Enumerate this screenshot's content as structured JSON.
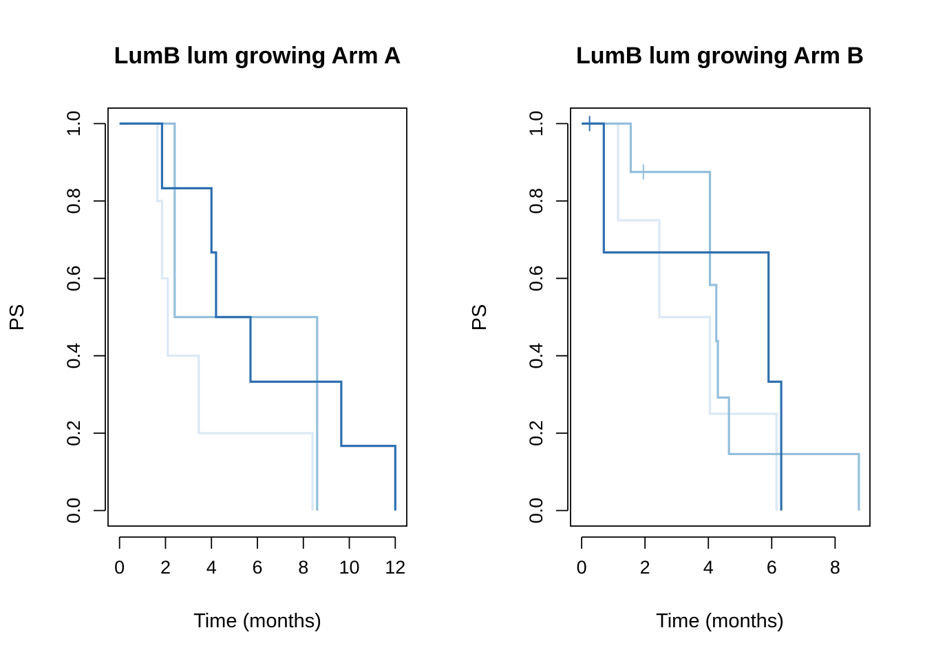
{
  "chart_data": [
    {
      "type": "line",
      "subtype": "step",
      "title": "LumB lum growing Arm A",
      "xlabel": "Time (months)",
      "ylabel": "PS",
      "xlim": [
        -0.5,
        12.5
      ],
      "ylim": [
        -0.04,
        1.04
      ],
      "xticks": [
        0,
        2,
        4,
        6,
        8,
        10,
        12
      ],
      "yticks": [
        "0.0",
        "0.2",
        "0.4",
        "0.6",
        "0.8",
        "1.0"
      ],
      "legend": "none",
      "grid": false,
      "series": [
        {
          "color": "#dbe8f5",
          "steps": [
            [
              0,
              1.0
            ],
            [
              1.65,
              0.8
            ],
            [
              1.85,
              0.6
            ],
            [
              2.1,
              0.4
            ],
            [
              3.45,
              0.2
            ],
            [
              8.4,
              0.0
            ]
          ],
          "end_x": 8.4,
          "censored": []
        },
        {
          "color": "#93bfdb",
          "steps": [
            [
              0,
              1.0
            ],
            [
              2.4,
              0.5
            ],
            [
              8.6,
              0.0
            ]
          ],
          "end_x": 8.6,
          "censored": []
        },
        {
          "color": "#2f6fb0",
          "steps": [
            [
              0,
              1.0
            ],
            [
              1.85,
              0.833
            ],
            [
              4.0,
              0.667
            ],
            [
              4.2,
              0.5
            ],
            [
              5.7,
              0.333
            ],
            [
              9.65,
              0.167
            ],
            [
              12.0,
              0.0
            ]
          ],
          "end_x": 12.0,
          "censored": []
        }
      ]
    },
    {
      "type": "line",
      "subtype": "step",
      "title": "LumB lum growing Arm B",
      "xlabel": "Time (months)",
      "ylabel": "PS",
      "xlim": [
        -0.35,
        9.1
      ],
      "ylim": [
        -0.04,
        1.04
      ],
      "xticks": [
        0,
        2,
        4,
        6,
        8
      ],
      "yticks": [
        "0.0",
        "0.2",
        "0.4",
        "0.6",
        "0.8",
        "1.0"
      ],
      "legend": "none",
      "grid": false,
      "series": [
        {
          "color": "#dbe8f5",
          "steps": [
            [
              0,
              1.0
            ],
            [
              1.15,
              0.75
            ],
            [
              2.45,
              0.5
            ],
            [
              4.05,
              0.25
            ],
            [
              6.15,
              0.0
            ]
          ],
          "end_x": 6.15,
          "censored": []
        },
        {
          "color": "#93bfdb",
          "steps": [
            [
              0,
              1.0
            ],
            [
              1.55,
              0.875
            ],
            [
              4.05,
              0.583
            ],
            [
              4.25,
              0.438
            ],
            [
              4.3,
              0.292
            ],
            [
              4.65,
              0.146
            ],
            [
              8.75,
              0.0
            ]
          ],
          "end_x": 8.75,
          "censored": [
            [
              1.95,
              0.875
            ]
          ]
        },
        {
          "color": "#2f6fb0",
          "steps": [
            [
              0,
              1.0
            ],
            [
              0.7,
              0.667
            ],
            [
              5.9,
              0.333
            ],
            [
              6.3,
              0.0
            ]
          ],
          "end_x": 6.3,
          "censored": [
            [
              0.25,
              1.0
            ]
          ]
        }
      ]
    }
  ]
}
